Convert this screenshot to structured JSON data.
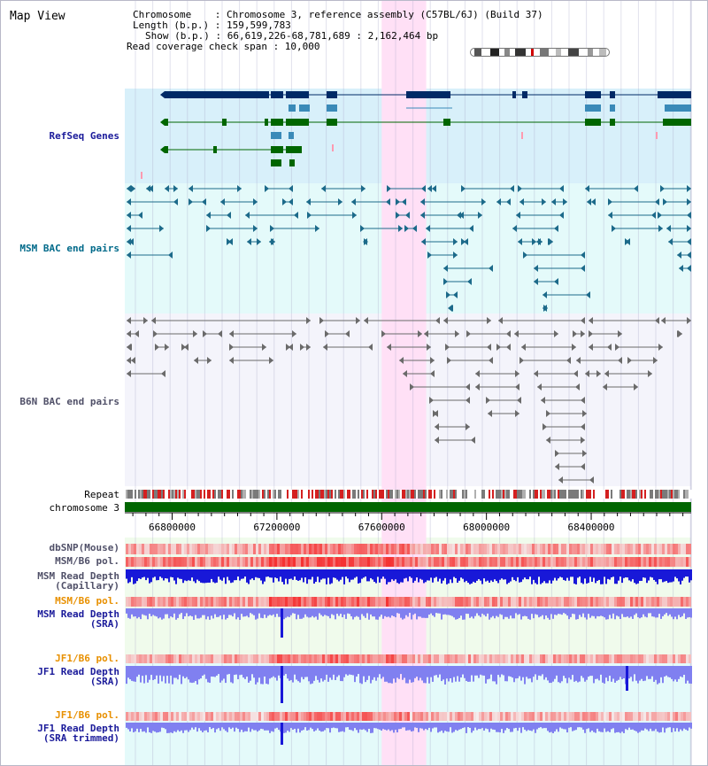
{
  "app": {
    "title": "Map View"
  },
  "info": {
    "line1": "Chromosome    : Chromosome 3, reference assembly (C57BL/6J) (Build 37)",
    "line2": "Length (b.p.) : 159,599,783",
    "line3": "Show (b.p.) : 66,619,226-68,781,689 : 2,162,464 bp",
    "line4": "Read coverage check span : 10,000"
  },
  "tracks": {
    "refseq": "RefSeq Genes",
    "msm_bac": "MSM BAC end pairs",
    "b6n_bac": "B6N BAC end pairs",
    "repeat": "Repeat",
    "chromosome": "chromosome 3",
    "dbsnp": "dbSNP(Mouse)",
    "msm_pol_1": "MSM/B6 pol.",
    "msm_depth_cap_1": "MSM Read Depth",
    "msm_depth_cap_2": "(Capillary)",
    "msm_pol_2": "MSM/B6 pol.",
    "msm_depth_sra_1": "MSM Read Depth",
    "msm_depth_sra_2": "(SRA)",
    "jf1_pol_1": "JF1/B6 pol.",
    "jf1_depth_sra_1": "JF1 Read Depth",
    "jf1_depth_sra_2": "(SRA)",
    "jf1_pol_2": "JF1/B6 pol.",
    "jf1_depth_trim_1": "JF1 Read Depth",
    "jf1_depth_trim_2": "(SRA trimmed)"
  },
  "ruler": {
    "ticks": [
      "66800000",
      "67200000",
      "67600000",
      "68000000",
      "68400000"
    ],
    "range": [
      66619226,
      68781689
    ]
  },
  "highlight_range": [
    67600000,
    67770000
  ],
  "colors": {
    "refseq_navy": "#002a66",
    "refseq_blue": "#3a8ab8",
    "refseq_green": "#006600",
    "msm_bac": "#1c6a8a",
    "b6n_bac": "#6a6a6a",
    "chromosome": "#006600",
    "highlight": "#ffe0f6",
    "depth_dark": "#1818d8",
    "depth_light": "#8080f0",
    "pol_red": "#f04040"
  }
}
